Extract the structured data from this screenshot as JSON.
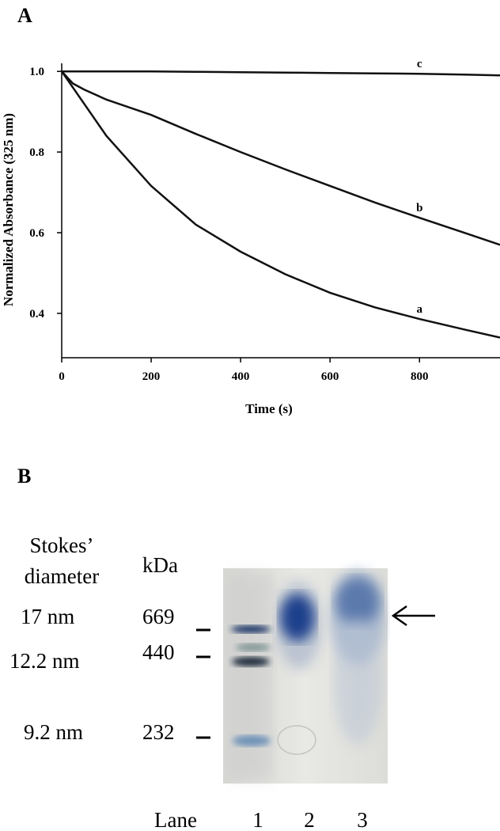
{
  "chart_data": {
    "type": "line",
    "panel_label": "A",
    "x_label": "Time (s)",
    "y_label": "Normalized Absorbance (325 nm)",
    "x": [
      0,
      25,
      50,
      100,
      200,
      300,
      400,
      500,
      600,
      700,
      800,
      900,
      980
    ],
    "series": [
      {
        "name": "a",
        "color": "#111111",
        "values": [
          1,
          0.96,
          0.92,
          0.84,
          0.716,
          0.62,
          0.553,
          0.497,
          0.451,
          0.415,
          0.386,
          0.36,
          0.34
        ]
      },
      {
        "name": "b",
        "color": "#111111",
        "values": [
          1,
          0.97,
          0.955,
          0.93,
          0.892,
          0.845,
          0.8,
          0.757,
          0.716,
          0.675,
          0.637,
          0.6,
          0.57
        ]
      },
      {
        "name": "c",
        "color": "#111111",
        "values": [
          1,
          1,
          1,
          1,
          1,
          0.999,
          0.998,
          0.997,
          0.996,
          0.995,
          0.994,
          0.992,
          0.99
        ]
      }
    ],
    "xlim": [
      0,
      980
    ],
    "ylim": [
      0.29,
      1.02
    ],
    "xticks": [
      0,
      200,
      400,
      600,
      800
    ],
    "yticks": [
      {
        "value": 0.4,
        "label": "0.4"
      },
      {
        "value": 0.6,
        "label": "0.6"
      },
      {
        "value": 0.8,
        "label": "0.8"
      },
      {
        "value": 1,
        "label": "1.0"
      }
    ],
    "grid": false
  },
  "panel_b": {
    "label": "B",
    "stokes_header": [
      "Stokes’",
      "diameter"
    ],
    "kda_header": "kDa",
    "markers": [
      {
        "diameter": "17 nm",
        "kda": "669"
      },
      {
        "diameter": "12.2 nm",
        "kda": "440"
      },
      {
        "diameter": "9.2 nm",
        "kda": "232"
      }
    ],
    "lane_header": "Lane",
    "lanes": [
      "1",
      "2",
      "3"
    ]
  }
}
